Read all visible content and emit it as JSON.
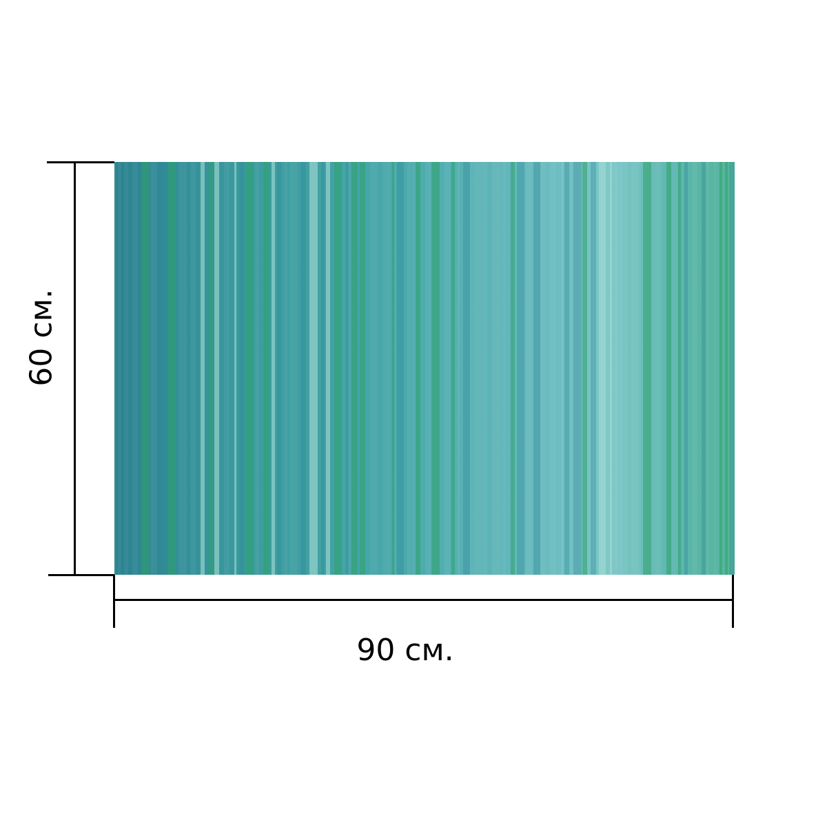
{
  "product": {
    "width_label": "90 см.",
    "height_label": "60 см.",
    "pattern": "vertical-stripes",
    "colors": {
      "base_dark": "#2b8290",
      "base_light": "#7fc8c8",
      "stripe_green": "#2fa36a",
      "stripe_light": "#a6dcd4",
      "stripe_teal": "#2e8898"
    }
  }
}
